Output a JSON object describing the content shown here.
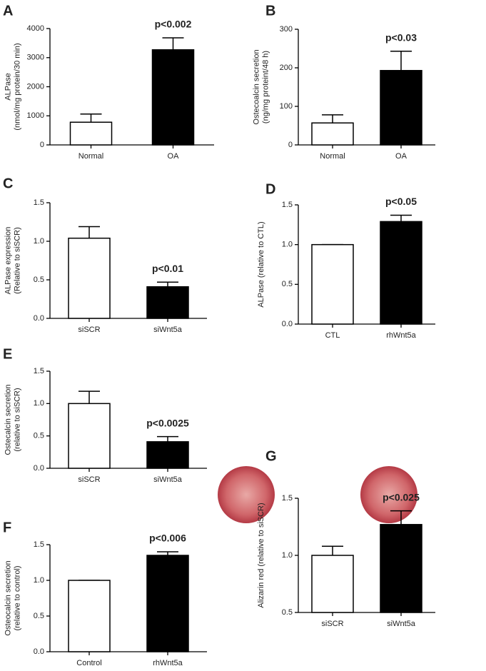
{
  "chart_data": [
    {
      "type": "bar",
      "panel": "A",
      "ylabel": [
        "ALPase",
        "(nmol/mg protein/30 min)"
      ],
      "categories": [
        "Normal",
        "OA"
      ],
      "values": [
        780,
        3270
      ],
      "errors": [
        280,
        410
      ],
      "colors": [
        "#ffffff",
        "#000000"
      ],
      "ylim": [
        0,
        4000
      ],
      "yticks": [
        0,
        1000,
        2000,
        3000,
        4000
      ],
      "annotation": "p<0.002"
    },
    {
      "type": "bar",
      "panel": "B",
      "ylabel": [
        "Ostecoalcin secretion",
        "(ng/mg proteint/48 h)"
      ],
      "categories": [
        "Normal",
        "OA"
      ],
      "values": [
        57,
        193
      ],
      "errors": [
        21,
        50
      ],
      "colors": [
        "#ffffff",
        "#000000"
      ],
      "ylim": [
        0,
        300
      ],
      "yticks": [
        0,
        100,
        200,
        300
      ],
      "annotation": "p<0.03"
    },
    {
      "type": "bar",
      "panel": "C",
      "ylabel": [
        "ALPase expression",
        "(Relative to siSCR)"
      ],
      "categories": [
        "siSCR",
        "siWnt5a"
      ],
      "values": [
        1.04,
        0.41
      ],
      "errors": [
        0.15,
        0.06
      ],
      "colors": [
        "#ffffff",
        "#000000"
      ],
      "ylim": [
        0,
        1.5
      ],
      "yticks": [
        {
          "value": 0,
          "label": "0.0"
        },
        0.5,
        {
          "value": 1,
          "label": "1.0"
        },
        1.5
      ],
      "annotation": "p<0.01"
    },
    {
      "type": "bar",
      "panel": "D",
      "ylabel": [
        "ALPase  (relative to CTL)"
      ],
      "categories": [
        "CTL",
        "rhWnt5a"
      ],
      "values": [
        1.0,
        1.29
      ],
      "errors": [
        0,
        0.08
      ],
      "colors": [
        "#ffffff",
        "#000000"
      ],
      "ylim": [
        0,
        1.5
      ],
      "yticks": [
        {
          "value": 0,
          "label": "0.0"
        },
        0.5,
        {
          "value": 1,
          "label": "1.0"
        },
        1.5
      ],
      "annotation": "p<0.05"
    },
    {
      "type": "bar",
      "panel": "E",
      "ylabel": [
        "Ostecalcin secretion",
        "(relative to siSCR)"
      ],
      "categories": [
        "siSCR",
        "siWnt5a"
      ],
      "values": [
        1.0,
        0.41
      ],
      "errors": [
        0.19,
        0.08
      ],
      "colors": [
        "#ffffff",
        "#000000"
      ],
      "ylim": [
        0,
        1.5
      ],
      "yticks": [
        {
          "value": 0,
          "label": "0.0"
        },
        0.5,
        {
          "value": 1,
          "label": "1.0"
        },
        1.5
      ],
      "annotation": "p<0.0025"
    },
    {
      "type": "bar",
      "panel": "F",
      "ylabel": [
        "Osteocalcin secretion",
        "(relative to control)"
      ],
      "categories": [
        "Control",
        "rhWnt5a"
      ],
      "values": [
        1.0,
        1.35
      ],
      "errors": [
        0,
        0.05
      ],
      "colors": [
        "#ffffff",
        "#000000"
      ],
      "ylim": [
        0,
        1.5
      ],
      "yticks": [
        {
          "value": 0,
          "label": "0.0"
        },
        0.5,
        {
          "value": 1,
          "label": "1.0"
        },
        1.5
      ],
      "annotation": "p<0.006"
    },
    {
      "type": "bar",
      "panel": "G",
      "ylabel": [
        "Alizarin red (relative to siSCR)"
      ],
      "categories": [
        "siSCR",
        "siWnt5a"
      ],
      "values": [
        1.0,
        1.27
      ],
      "errors": [
        0.08,
        0.12
      ],
      "colors": [
        "#ffffff",
        "#000000"
      ],
      "ylim": [
        0.5,
        1.5
      ],
      "yticks": [
        0.5,
        {
          "value": 1,
          "label": "1.0"
        },
        1.5
      ],
      "annotation": "p<0.025"
    }
  ]
}
